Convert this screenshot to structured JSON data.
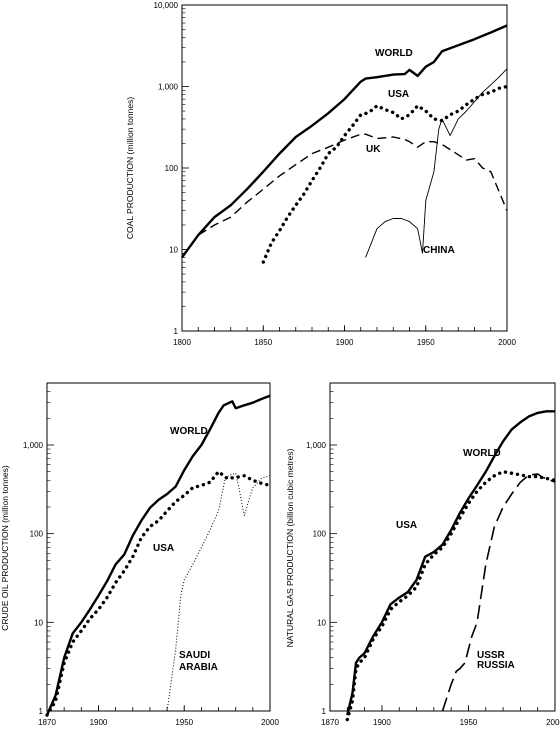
{
  "chart_data": [
    {
      "type": "line",
      "ylabel": "COAL PRODUCTION (million tonnes)",
      "xlabel": "",
      "yscale": "log",
      "xlim": [
        1800,
        2000
      ],
      "ylim": [
        1,
        10000
      ],
      "xticks": [
        1800,
        1850,
        1900,
        1950,
        2000
      ],
      "yticks": [
        {
          "value": 1,
          "label": "1"
        },
        {
          "value": 10,
          "label": "10"
        },
        {
          "value": 100,
          "label": "100"
        },
        {
          "value": 1000,
          "label": "1,000"
        },
        {
          "value": 10000,
          "label": "10,000"
        }
      ],
      "series": [
        {
          "name": "WORLD",
          "style": "thick",
          "x": [
            1800,
            1810,
            1820,
            1830,
            1840,
            1850,
            1860,
            1870,
            1880,
            1890,
            1900,
            1910,
            1913,
            1920,
            1930,
            1937,
            1940,
            1945,
            1950,
            1955,
            1960,
            1970,
            1980,
            1990,
            2000
          ],
          "y": [
            8,
            15,
            25,
            35,
            55,
            90,
            150,
            240,
            330,
            470,
            700,
            1150,
            1250,
            1300,
            1400,
            1420,
            1600,
            1350,
            1750,
            2000,
            2700,
            3200,
            3800,
            4600,
            5600
          ]
        },
        {
          "name": "USA",
          "style": "dotted-heavy",
          "x": [
            1850,
            1855,
            1860,
            1865,
            1870,
            1875,
            1880,
            1885,
            1890,
            1895,
            1900,
            1905,
            1910,
            1915,
            1920,
            1925,
            1930,
            1935,
            1940,
            1945,
            1950,
            1955,
            1960,
            1965,
            1970,
            1975,
            1980,
            1985,
            1990,
            1995,
            2000
          ],
          "y": [
            7,
            12,
            17,
            25,
            35,
            48,
            70,
            100,
            150,
            180,
            250,
            330,
            450,
            480,
            580,
            520,
            480,
            400,
            450,
            580,
            500,
            400,
            380,
            450,
            500,
            600,
            700,
            800,
            850,
            950,
            1000
          ]
        },
        {
          "name": "UK",
          "style": "dashed",
          "x": [
            1800,
            1810,
            1820,
            1830,
            1840,
            1850,
            1860,
            1870,
            1880,
            1890,
            1900,
            1910,
            1913,
            1920,
            1930,
            1937,
            1940,
            1945,
            1950,
            1955,
            1960,
            1970,
            1975,
            1980,
            1985,
            1990,
            2000
          ],
          "y": [
            8,
            15,
            20,
            25,
            38,
            55,
            80,
            110,
            150,
            180,
            220,
            260,
            260,
            230,
            240,
            225,
            210,
            180,
            210,
            210,
            195,
            145,
            125,
            130,
            100,
            90,
            30
          ]
        },
        {
          "name": "CHINA",
          "style": "thin",
          "x": [
            1913,
            1920,
            1925,
            1930,
            1935,
            1940,
            1945,
            1948,
            1950,
            1955,
            1958,
            1960,
            1965,
            1970,
            1975,
            1980,
            1985,
            1990,
            1995,
            2000
          ],
          "y": [
            8,
            18,
            22,
            24,
            24,
            22,
            18,
            9,
            40,
            90,
            300,
            400,
            250,
            400,
            500,
            650,
            850,
            1050,
            1300,
            1650
          ]
        }
      ],
      "annotations": [
        "WORLD",
        "USA",
        "UK",
        "CHINA"
      ]
    },
    {
      "type": "line",
      "ylabel": "CRUDE OIL PRODUCTION (million tonnes)",
      "xlabel": "",
      "yscale": "log",
      "xlim": [
        1870,
        2000
      ],
      "ylim": [
        1,
        5000
      ],
      "xticks": [
        1870,
        1900,
        1950,
        2000
      ],
      "yticks": [
        {
          "value": 1,
          "label": "1"
        },
        {
          "value": 10,
          "label": "10"
        },
        {
          "value": 100,
          "label": "100"
        },
        {
          "value": 1000,
          "label": "1,000"
        }
      ],
      "series": [
        {
          "name": "WORLD",
          "style": "thick",
          "x": [
            1870,
            1875,
            1880,
            1885,
            1890,
            1895,
            1900,
            1905,
            1910,
            1915,
            1920,
            1925,
            1930,
            1935,
            1940,
            1945,
            1950,
            1955,
            1960,
            1965,
            1970,
            1973,
            1978,
            1980,
            1985,
            1990,
            1995,
            2000
          ],
          "y": [
            0.9,
            1.5,
            4,
            7.5,
            10,
            14,
            20,
            29,
            45,
            58,
            95,
            140,
            195,
            240,
            280,
            340,
            520,
            750,
            1000,
            1500,
            2300,
            2800,
            3100,
            2600,
            2800,
            3000,
            3300,
            3600
          ]
        },
        {
          "name": "USA",
          "style": "dotted-heavy",
          "x": [
            1870,
            1875,
            1880,
            1885,
            1890,
            1895,
            1900,
            1905,
            1910,
            1915,
            1920,
            1925,
            1930,
            1935,
            1940,
            1945,
            1950,
            1955,
            1960,
            1965,
            1970,
            1973,
            1975,
            1980,
            1985,
            1990,
            1995,
            2000
          ],
          "y": [
            0.9,
            1.3,
            3.5,
            6,
            8,
            11,
            14,
            19,
            28,
            38,
            55,
            90,
            120,
            140,
            180,
            230,
            270,
            330,
            350,
            380,
            500,
            450,
            420,
            430,
            450,
            400,
            370,
            350
          ]
        },
        {
          "name": "SAUDI ARABIA",
          "style": "dotted-thin",
          "x": [
            1940,
            1945,
            1948,
            1950,
            1955,
            1960,
            1965,
            1970,
            1974,
            1977,
            1980,
            1982,
            1985,
            1988,
            1990,
            1995,
            2000
          ],
          "y": [
            1,
            5,
            20,
            30,
            45,
            70,
            110,
            180,
            430,
            460,
            480,
            320,
            160,
            250,
            330,
            420,
            450
          ]
        }
      ],
      "annotations": [
        "WORLD",
        "USA",
        "SAUDI",
        "ARABIA"
      ]
    },
    {
      "type": "line",
      "ylabel": "NATURAL GAS PRODUCTION (billion cubic metres)",
      "xlabel": "",
      "yscale": "log",
      "xlim": [
        1870,
        2000
      ],
      "ylim": [
        1,
        5000
      ],
      "xticks": [
        1870,
        1900,
        1950,
        2000
      ],
      "yticks": [
        {
          "value": 1,
          "label": "1"
        },
        {
          "value": 10,
          "label": "10"
        },
        {
          "value": 100,
          "label": "100"
        },
        {
          "value": 1000,
          "label": "1,000"
        }
      ],
      "series": [
        {
          "name": "WORLD",
          "style": "thick",
          "x": [
            1880,
            1883,
            1885,
            1887,
            1890,
            1895,
            1900,
            1905,
            1910,
            1915,
            1920,
            1925,
            1930,
            1935,
            1940,
            1945,
            1950,
            1955,
            1960,
            1965,
            1970,
            1975,
            1980,
            1985,
            1990,
            1995,
            2000
          ],
          "y": [
            0.9,
            1.6,
            3.5,
            4,
            4.5,
            7,
            10,
            16,
            19,
            22,
            30,
            55,
            62,
            75,
            110,
            170,
            250,
            350,
            500,
            750,
            1100,
            1500,
            1800,
            2100,
            2300,
            2400,
            2400
          ]
        },
        {
          "name": "USA",
          "style": "dotted-heavy",
          "x": [
            1880,
            1883,
            1885,
            1887,
            1890,
            1895,
            1900,
            1905,
            1910,
            1915,
            1920,
            1925,
            1930,
            1935,
            1940,
            1945,
            1950,
            1955,
            1960,
            1965,
            1970,
            1975,
            1980,
            1985,
            1990,
            1995,
            2000
          ],
          "y": [
            0.8,
            1.3,
            3,
            3.5,
            4,
            6.5,
            9,
            14,
            17,
            20,
            25,
            45,
            58,
            70,
            100,
            150,
            220,
            300,
            380,
            450,
            500,
            480,
            460,
            440,
            440,
            420,
            400
          ]
        },
        {
          "name": "USSR RUSSIA",
          "style": "dashed-long",
          "x": [
            1935,
            1940,
            1943,
            1945,
            1948,
            1950,
            1952,
            1955,
            1960,
            1965,
            1970,
            1975,
            1980,
            1985,
            1990,
            1993,
            1995,
            2000
          ],
          "y": [
            1,
            2,
            2.8,
            3,
            3.5,
            5,
            7,
            10,
            45,
            120,
            200,
            280,
            380,
            460,
            470,
            430,
            420,
            380
          ]
        }
      ],
      "annotations": [
        "WORLD",
        "USA",
        "USSR",
        "RUSSIA"
      ]
    }
  ]
}
